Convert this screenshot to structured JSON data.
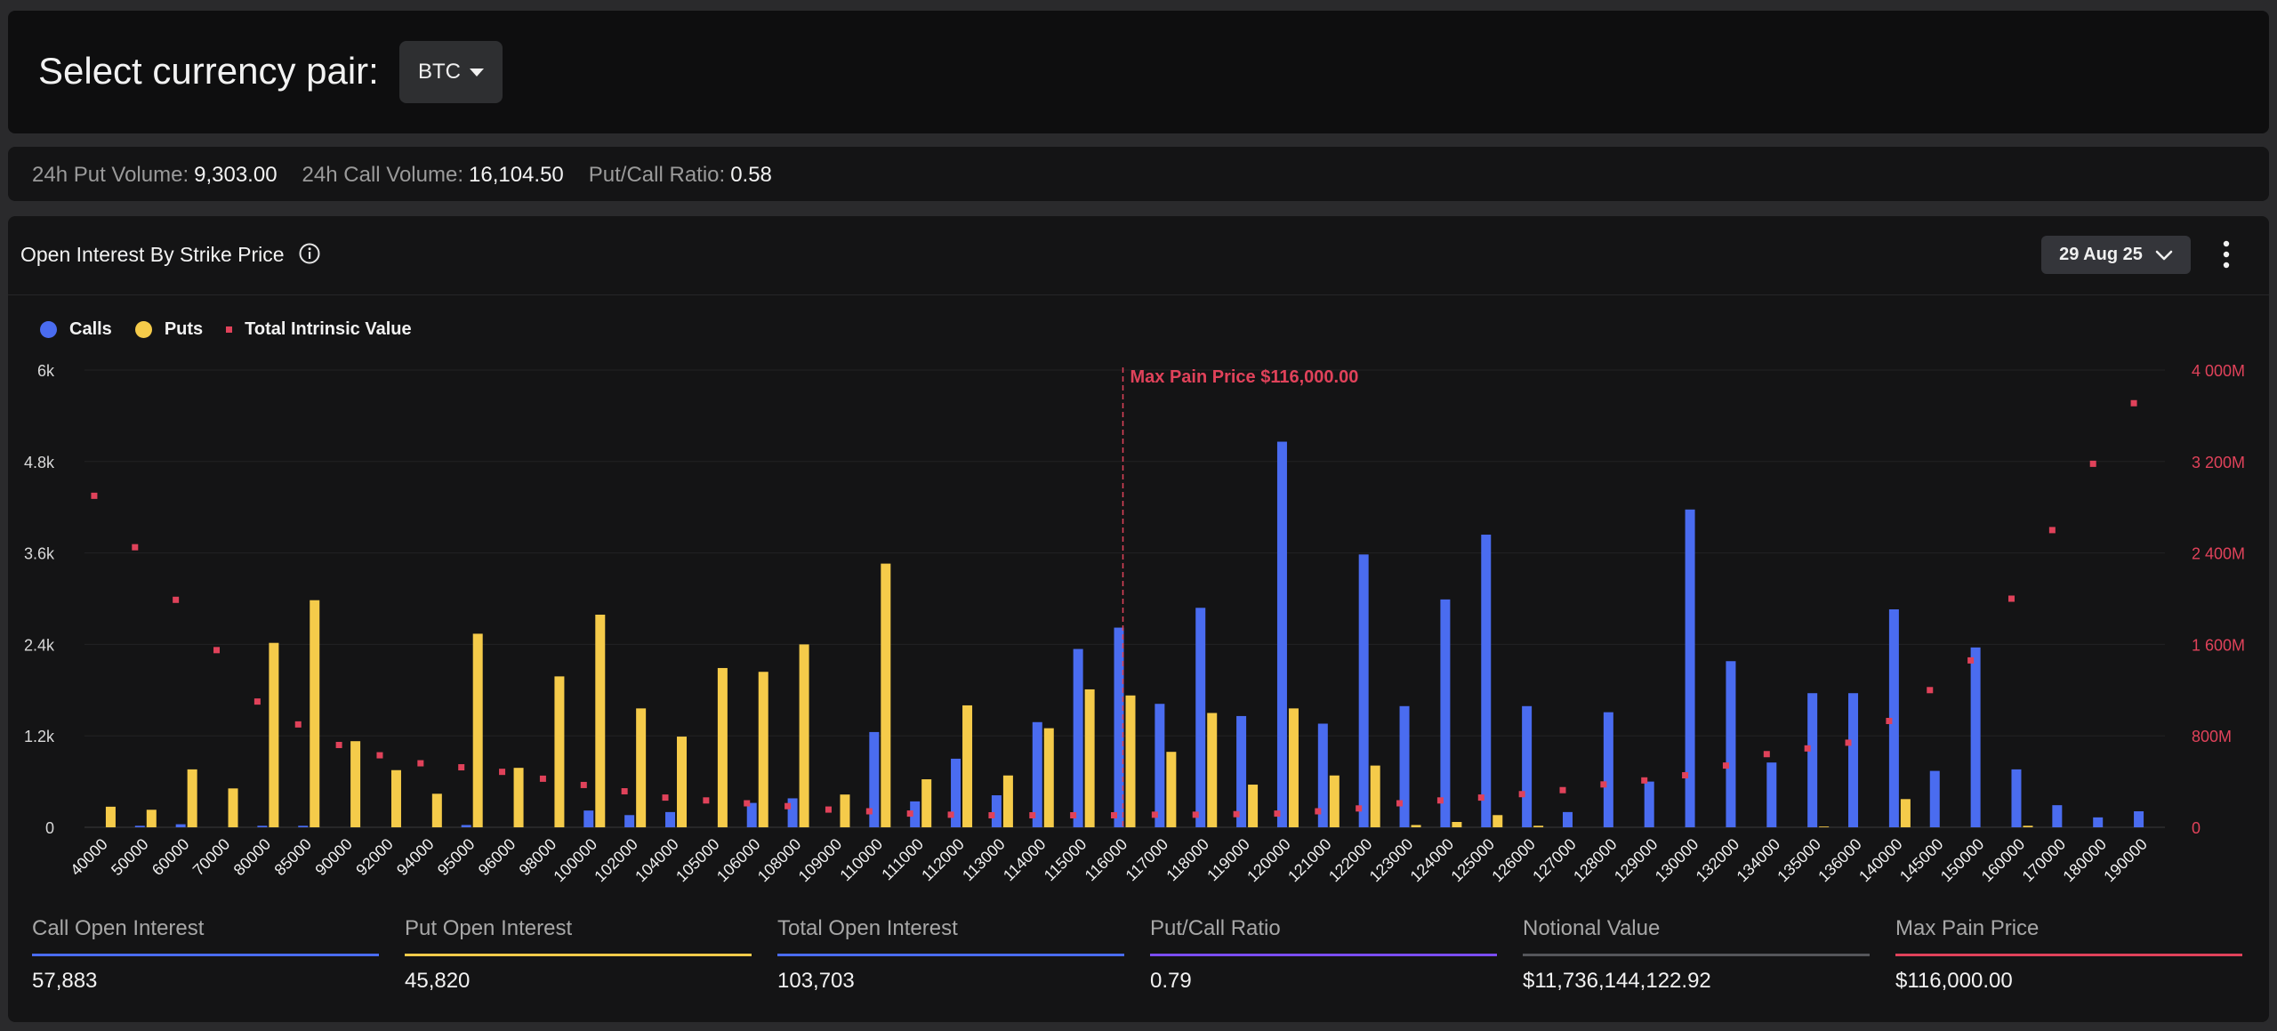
{
  "header": {
    "title": "Select currency pair:",
    "currency": "BTC"
  },
  "stats": [
    {
      "label": "24h Put Volume:",
      "value": "9,303.00"
    },
    {
      "label": "24h Call Volume:",
      "value": "16,104.50"
    },
    {
      "label": "Put/Call Ratio:",
      "value": "0.58"
    }
  ],
  "chart_header": {
    "title": "Open Interest By Strike Price",
    "date": "29 Aug 25"
  },
  "legend": [
    "Calls",
    "Puts",
    "Total Intrinsic Value"
  ],
  "colors": {
    "calls": "#4a6cf0",
    "puts": "#f5cb4a",
    "intrinsic": "#e0425a",
    "max_pain": "#e0425a",
    "ratio": "#7b4df2"
  },
  "chart_data": {
    "type": "bar",
    "categories": [
      "40000",
      "50000",
      "60000",
      "70000",
      "80000",
      "85000",
      "90000",
      "92000",
      "94000",
      "95000",
      "96000",
      "98000",
      "100000",
      "102000",
      "104000",
      "105000",
      "106000",
      "108000",
      "109000",
      "110000",
      "111000",
      "112000",
      "113000",
      "114000",
      "115000",
      "116000",
      "117000",
      "118000",
      "119000",
      "120000",
      "121000",
      "122000",
      "123000",
      "124000",
      "125000",
      "126000",
      "127000",
      "128000",
      "129000",
      "130000",
      "132000",
      "134000",
      "135000",
      "136000",
      "140000",
      "145000",
      "150000",
      "160000",
      "170000",
      "180000",
      "190000"
    ],
    "series": [
      {
        "name": "Calls",
        "values": [
          0,
          20,
          40,
          0,
          20,
          20,
          0,
          0,
          0,
          30,
          0,
          0,
          220,
          160,
          200,
          0,
          320,
          380,
          0,
          1250,
          340,
          900,
          420,
          1380,
          2340,
          2620,
          1620,
          2880,
          1460,
          5060,
          1360,
          3580,
          1590,
          2990,
          3840,
          1590,
          200,
          1510,
          600,
          4170,
          2180,
          850,
          1760,
          1760,
          2860,
          740,
          2360,
          760,
          290,
          130,
          210
        ]
      },
      {
        "name": "Puts",
        "values": [
          270,
          230,
          760,
          510,
          2420,
          2980,
          1130,
          750,
          440,
          2540,
          780,
          1980,
          2790,
          1560,
          1190,
          2090,
          2040,
          2400,
          430,
          3460,
          630,
          1600,
          680,
          1300,
          1810,
          1730,
          990,
          1500,
          560,
          1560,
          680,
          810,
          30,
          70,
          160,
          20,
          0,
          0,
          0,
          0,
          0,
          0,
          10,
          0,
          370,
          0,
          0,
          20,
          0,
          0,
          0
        ]
      },
      {
        "name": "Total Intrinsic Value",
        "axis": "right",
        "values": [
          2900,
          2450,
          1990,
          1550,
          1100,
          900,
          720,
          630,
          560,
          525,
          485,
          425,
          370,
          315,
          260,
          235,
          210,
          185,
          155,
          140,
          120,
          110,
          105,
          105,
          105,
          105,
          110,
          110,
          115,
          120,
          140,
          165,
          210,
          235,
          260,
          290,
          325,
          375,
          410,
          455,
          540,
          640,
          690,
          740,
          930,
          1200,
          1460,
          2000,
          2600,
          3180,
          3710
        ]
      }
    ],
    "y_left": {
      "min": 0,
      "max": 6000,
      "ticks": [
        "0",
        "1.2k",
        "2.4k",
        "3.6k",
        "4.8k",
        "6k"
      ]
    },
    "y_right": {
      "min": 0,
      "max": 4000,
      "ticks": [
        "0",
        "800M",
        "1 600M",
        "2 400M",
        "3 200M",
        "4 000M"
      ]
    },
    "max_pain": {
      "strike": "116000",
      "label": "Max Pain Price $116,000.00"
    },
    "grid": true,
    "legend_position": "top-left"
  },
  "summary": [
    {
      "label": "Call Open Interest",
      "value": "57,883",
      "color": "#4a6cf0"
    },
    {
      "label": "Put Open Interest",
      "value": "45,820",
      "color": "#f5cb4a"
    },
    {
      "label": "Total Open Interest",
      "value": "103,703",
      "color": "#4a6cf0"
    },
    {
      "label": "Put/Call Ratio",
      "value": "0.79",
      "color": "#7b4df2"
    },
    {
      "label": "Notional Value",
      "value": "$11,736,144,122.92",
      "color": "#55565a"
    },
    {
      "label": "Max Pain Price",
      "value": "$116,000.00",
      "color": "#e0425a"
    }
  ],
  "icons": {
    "info": "info-icon",
    "dropdown": "chevron-down-icon",
    "menu": "more-vertical-icon"
  }
}
